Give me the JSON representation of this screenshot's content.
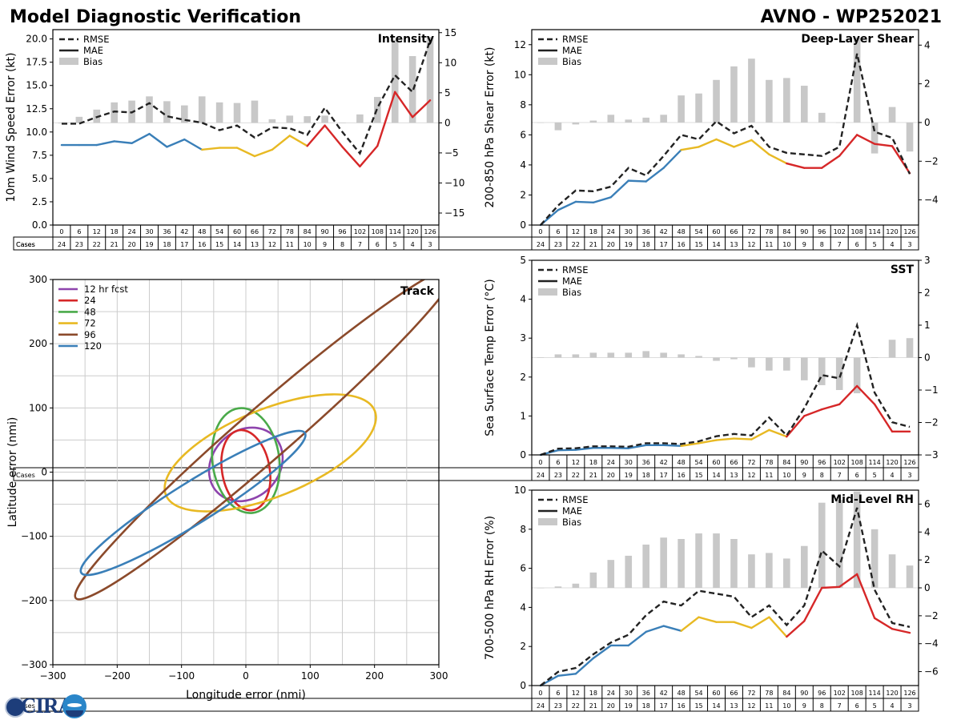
{
  "header": {
    "title": "Model Diagnostic Verification",
    "storm": "AVNO - WP252021"
  },
  "legend": {
    "rmse": "RMSE",
    "mae": "MAE",
    "bias": "Bias"
  },
  "cases_label": "Cases",
  "colors": {
    "blue": "#3a7fb8",
    "yellow": "#e8b923",
    "red": "#d62728",
    "black": "#222222",
    "bias": "#c8c8c8",
    "purple": "#8e44ad",
    "green": "#4aaa4a",
    "brown": "#8b4a2b",
    "grid": "#cccccc"
  },
  "logo": {
    "text": "CIRA"
  },
  "chart_data": [
    {
      "id": "intensity",
      "type": "line",
      "title": "Intensity",
      "ylabel": "10m Wind Speed Error (kt)",
      "ylim": [
        0,
        21
      ],
      "y2lim": [
        -17,
        15.5
      ],
      "yticks": [
        0.0,
        2.5,
        5.0,
        7.5,
        10.0,
        12.5,
        15.0,
        17.5,
        20.0
      ],
      "ytick_labels": [
        "0.0",
        "2.5",
        "5.0",
        "7.5",
        "10.0",
        "12.5",
        "15.0",
        "17.5",
        "20.0"
      ],
      "y2ticks": [
        -15,
        -10,
        -5,
        0,
        5,
        10,
        15
      ],
      "y2tick_labels": [
        "−15",
        "−10",
        "−5",
        "0",
        "5",
        "10",
        "15"
      ],
      "x": [
        0,
        6,
        12,
        18,
        24,
        30,
        36,
        42,
        48,
        54,
        60,
        66,
        72,
        78,
        84,
        90,
        96,
        102,
        108,
        114,
        120,
        126
      ],
      "cases": [
        24,
        23,
        22,
        21,
        20,
        19,
        18,
        17,
        16,
        15,
        14,
        13,
        12,
        11,
        10,
        9,
        8,
        7,
        6,
        5,
        4,
        3
      ],
      "rmse": [
        10.9,
        10.9,
        11.6,
        12.2,
        12.1,
        13.1,
        11.7,
        11.3,
        11.0,
        10.2,
        10.7,
        9.4,
        10.5,
        10.4,
        9.7,
        12.6,
        10.0,
        7.7,
        12.6,
        16.1,
        14.3,
        19.8
      ],
      "mae": [
        8.6,
        8.6,
        8.6,
        9.0,
        8.8,
        9.8,
        8.4,
        9.2,
        8.1,
        8.3,
        8.3,
        7.4,
        8.1,
        9.6,
        8.5,
        10.7,
        8.4,
        6.3,
        8.5,
        14.3,
        11.6,
        13.4
      ],
      "bias": [
        -0.1,
        1.0,
        2.2,
        3.4,
        3.7,
        4.4,
        3.6,
        2.9,
        4.4,
        3.4,
        3.3,
        3.7,
        0.6,
        1.2,
        1.1,
        1.2,
        0.0,
        1.4,
        4.3,
        13.8,
        11.1,
        14.3
      ]
    },
    {
      "id": "shear",
      "type": "line",
      "title": "Deep-Layer Shear",
      "ylabel": "200-850 hPa Shear Error (kt)",
      "ylim": [
        0,
        13
      ],
      "y2lim": [
        -5.3,
        4.8
      ],
      "yticks": [
        0,
        2,
        4,
        6,
        8,
        10,
        12
      ],
      "ytick_labels": [
        "0",
        "2",
        "4",
        "6",
        "8",
        "10",
        "12"
      ],
      "y2ticks": [
        -4,
        -2,
        0,
        2,
        4
      ],
      "y2tick_labels": [
        "−4",
        "−2",
        "0",
        "2",
        "4"
      ],
      "x": [
        0,
        6,
        12,
        18,
        24,
        30,
        36,
        42,
        48,
        54,
        60,
        66,
        72,
        78,
        84,
        90,
        96,
        102,
        108,
        114,
        120,
        126
      ],
      "cases": [
        24,
        23,
        22,
        21,
        20,
        19,
        18,
        17,
        16,
        15,
        14,
        13,
        12,
        11,
        10,
        9,
        8,
        7,
        6,
        5,
        4,
        3
      ],
      "rmse": [
        0.0,
        1.3,
        2.3,
        2.25,
        2.55,
        3.8,
        3.3,
        4.6,
        6.0,
        5.7,
        6.9,
        6.1,
        6.6,
        5.2,
        4.8,
        4.7,
        4.6,
        5.2,
        11.4,
        6.2,
        5.8,
        3.4
      ],
      "mae": [
        0.0,
        1.0,
        1.55,
        1.5,
        1.85,
        2.95,
        2.9,
        3.8,
        5.0,
        5.2,
        5.7,
        5.2,
        5.65,
        4.7,
        4.1,
        3.8,
        3.8,
        4.6,
        6.0,
        5.4,
        5.25,
        3.45
      ],
      "bias": [
        0.0,
        -0.4,
        -0.1,
        0.1,
        0.4,
        0.15,
        0.25,
        0.4,
        1.4,
        1.5,
        2.2,
        2.9,
        3.3,
        2.2,
        2.3,
        1.9,
        0.5,
        0.0,
        4.4,
        -1.6,
        0.8,
        -1.5
      ]
    },
    {
      "id": "sst",
      "type": "line",
      "title": "SST",
      "ylabel": "Sea Surface Temp Error (°C)",
      "ylim": [
        0,
        5
      ],
      "y2lim": [
        -3,
        3
      ],
      "yticks": [
        0,
        1,
        2,
        3,
        4,
        5
      ],
      "ytick_labels": [
        "0",
        "1",
        "2",
        "3",
        "4",
        "5"
      ],
      "y2ticks": [
        -3,
        -2,
        -1,
        0,
        1,
        2,
        3
      ],
      "y2tick_labels": [
        "−3",
        "−2",
        "−1",
        "0",
        "1",
        "2",
        "3"
      ],
      "x": [
        0,
        6,
        12,
        18,
        24,
        30,
        36,
        42,
        48,
        54,
        60,
        66,
        72,
        78,
        84,
        90,
        96,
        102,
        108,
        114,
        120,
        126
      ],
      "cases": [
        24,
        23,
        22,
        21,
        20,
        19,
        18,
        17,
        16,
        15,
        14,
        13,
        12,
        11,
        10,
        9,
        8,
        7,
        6,
        5,
        4,
        3
      ],
      "rmse": [
        0.0,
        0.16,
        0.17,
        0.22,
        0.22,
        0.21,
        0.3,
        0.3,
        0.28,
        0.35,
        0.48,
        0.54,
        0.5,
        0.96,
        0.5,
        1.2,
        2.05,
        1.97,
        3.33,
        1.6,
        0.84,
        0.72
      ],
      "mae": [
        0.0,
        0.12,
        0.13,
        0.18,
        0.18,
        0.17,
        0.25,
        0.25,
        0.23,
        0.3,
        0.38,
        0.42,
        0.4,
        0.64,
        0.47,
        1.0,
        1.17,
        1.3,
        1.77,
        1.3,
        0.6,
        0.6
      ],
      "bias": [
        0.0,
        0.1,
        0.1,
        0.15,
        0.15,
        0.15,
        0.2,
        0.15,
        0.1,
        0.05,
        -0.1,
        -0.05,
        -0.3,
        -0.4,
        -0.4,
        -0.7,
        -0.85,
        -1.0,
        -1.1,
        0.0,
        0.55,
        0.6
      ]
    },
    {
      "id": "rh",
      "type": "line",
      "title": "Mid-Level RH",
      "ylabel": "700-500 hPa RH Error (%)",
      "ylim": [
        0,
        10
      ],
      "y2lim": [
        -7,
        7
      ],
      "yticks": [
        0,
        2,
        4,
        6,
        8,
        10
      ],
      "ytick_labels": [
        "0",
        "2",
        "4",
        "6",
        "8",
        "10"
      ],
      "y2ticks": [
        -6,
        -4,
        -2,
        0,
        2,
        4,
        6
      ],
      "y2tick_labels": [
        "−6",
        "−4",
        "−2",
        "0",
        "2",
        "4",
        "6"
      ],
      "x": [
        0,
        6,
        12,
        18,
        24,
        30,
        36,
        42,
        48,
        54,
        60,
        66,
        72,
        78,
        84,
        90,
        96,
        102,
        108,
        114,
        120,
        126
      ],
      "cases": [
        24,
        23,
        22,
        21,
        20,
        19,
        18,
        17,
        16,
        15,
        14,
        13,
        12,
        11,
        10,
        9,
        8,
        7,
        6,
        5,
        4,
        3
      ],
      "rmse": [
        0.0,
        0.7,
        0.9,
        1.6,
        2.2,
        2.6,
        3.6,
        4.3,
        4.1,
        4.85,
        4.7,
        4.55,
        3.5,
        4.1,
        3.1,
        4.1,
        6.9,
        6.1,
        9.1,
        4.9,
        3.2,
        3.0
      ],
      "mae": [
        0.0,
        0.5,
        0.6,
        1.4,
        2.05,
        2.05,
        2.75,
        3.05,
        2.8,
        3.5,
        3.25,
        3.25,
        2.95,
        3.5,
        2.5,
        3.3,
        5.0,
        5.05,
        5.7,
        3.45,
        2.9,
        2.7
      ],
      "bias": [
        0.0,
        0.1,
        0.3,
        1.1,
        2.0,
        2.3,
        3.1,
        3.6,
        3.5,
        3.9,
        3.9,
        3.5,
        2.4,
        2.5,
        2.1,
        3.0,
        6.1,
        6.3,
        6.9,
        4.2,
        2.4,
        1.6
      ]
    },
    {
      "id": "track",
      "type": "scatter",
      "title": "Track",
      "xlabel": "Longitude error (nmi)",
      "ylabel": "Latitude error (nmi)",
      "xlim": [
        -300,
        300
      ],
      "ylim": [
        -300,
        300
      ],
      "ticks": [
        -300,
        -200,
        -100,
        0,
        100,
        200,
        300
      ],
      "tick_labels": [
        "−300",
        "−200",
        "−100",
        "0",
        "100",
        "200",
        "300"
      ],
      "grid": "on",
      "ellipses": [
        {
          "label": "12 hr fcst",
          "cx": 0,
          "cy": 12,
          "rx": 62,
          "ry": 52,
          "angle": 45
        },
        {
          "label": "24",
          "cx": 0,
          "cy": 3,
          "rx": 37,
          "ry": 63,
          "angle": 10
        },
        {
          "label": "48",
          "cx": 0,
          "cy": 18,
          "rx": 52,
          "ry": 82,
          "angle": 8
        },
        {
          "label": "72",
          "cx": 38,
          "cy": 30,
          "rx": 175,
          "ry": 68,
          "angle": 22
        },
        {
          "label": "96",
          "cx": 30,
          "cy": 60,
          "rx": 390,
          "ry": 40,
          "angle": 41
        },
        {
          "label": "120",
          "cx": -82,
          "cy": -48,
          "rx": 205,
          "ry": 32,
          "angle": 32
        }
      ]
    }
  ]
}
